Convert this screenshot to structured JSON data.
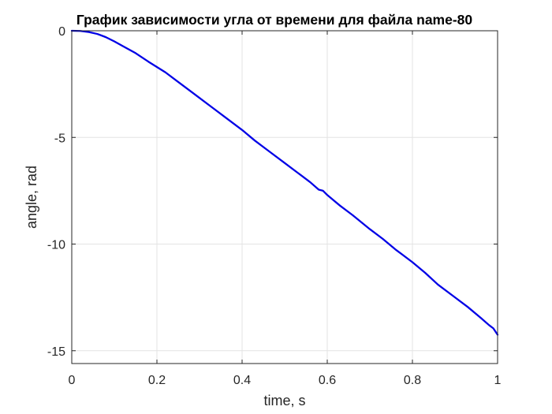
{
  "chart_data": {
    "type": "line",
    "title": "График зависимости угла от времени для файла name-80",
    "xlabel": "time, s",
    "ylabel": "angle, rad",
    "xlim": [
      0,
      1
    ],
    "ylim": [
      -15.6,
      0
    ],
    "grid": true,
    "x_ticks": [
      0,
      0.2,
      0.4,
      0.6,
      0.8,
      1
    ],
    "x_tick_labels": [
      "0",
      "0.2",
      "0.4",
      "0.6",
      "0.8",
      "1"
    ],
    "y_ticks": [
      0,
      -5,
      -10,
      -15
    ],
    "y_tick_labels": [
      "0",
      "-5",
      "-10",
      "-15"
    ],
    "series": [
      {
        "color": "#0000e6",
        "x": [
          0,
          0.02,
          0.04,
          0.06,
          0.08,
          0.1,
          0.12,
          0.15,
          0.18,
          0.2,
          0.22,
          0.25,
          0.28,
          0.3,
          0.33,
          0.36,
          0.4,
          0.43,
          0.46,
          0.5,
          0.53,
          0.56,
          0.58,
          0.59,
          0.6,
          0.63,
          0.66,
          0.7,
          0.73,
          0.76,
          0.8,
          0.83,
          0.86,
          0.9,
          0.93,
          0.96,
          0.98,
          0.99,
          1.0
        ],
        "values": [
          0,
          -0.01,
          -0.06,
          -0.15,
          -0.3,
          -0.5,
          -0.72,
          -1.05,
          -1.45,
          -1.7,
          -1.95,
          -2.4,
          -2.85,
          -3.15,
          -3.6,
          -4.05,
          -4.65,
          -5.15,
          -5.6,
          -6.2,
          -6.65,
          -7.1,
          -7.45,
          -7.5,
          -7.7,
          -8.2,
          -8.65,
          -9.3,
          -9.75,
          -10.25,
          -10.85,
          -11.35,
          -11.9,
          -12.5,
          -12.95,
          -13.45,
          -13.8,
          -13.95,
          -14.25
        ]
      }
    ]
  }
}
